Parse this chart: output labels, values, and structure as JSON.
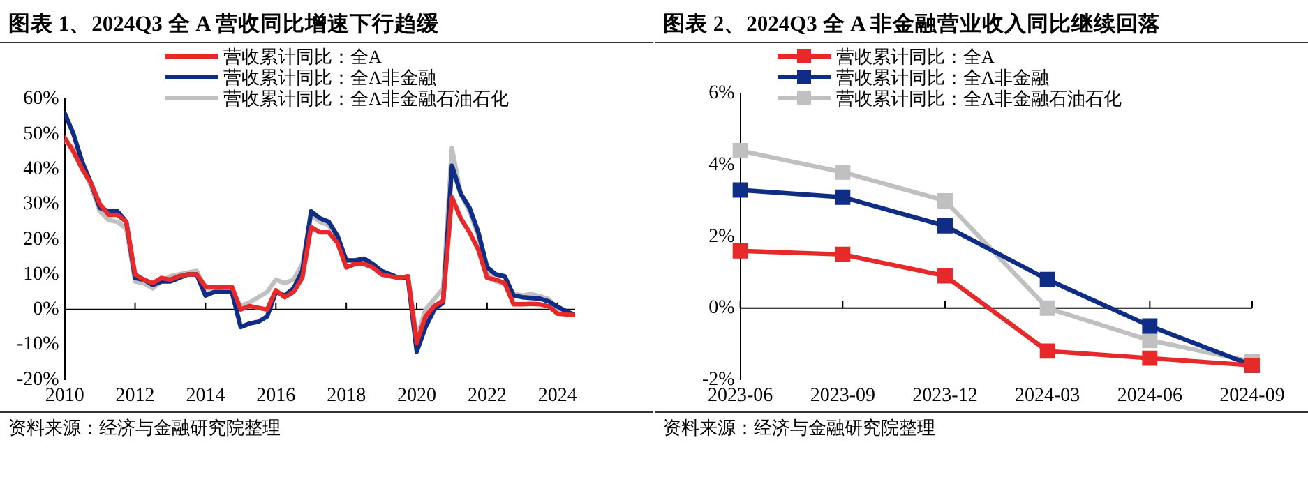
{
  "chart_data": [
    {
      "type": "line",
      "title": "图表 1、2024Q3 全 A 营收同比增速下行趋缓",
      "annotations": [
        "资料来源：经济与金融研究院整理"
      ],
      "legend": "top",
      "grid": false,
      "marker": "none",
      "ref_lines": [
        {
          "axis": "y",
          "value": 0,
          "color": "#000000"
        }
      ],
      "x": [
        2010,
        2010.25,
        2010.5,
        2010.75,
        2011,
        2011.25,
        2011.5,
        2011.75,
        2012,
        2012.25,
        2012.5,
        2012.75,
        2013,
        2013.25,
        2013.5,
        2013.75,
        2014,
        2014.25,
        2014.5,
        2014.75,
        2015,
        2015.25,
        2015.5,
        2015.75,
        2016,
        2016.25,
        2016.5,
        2016.75,
        2017,
        2017.25,
        2017.5,
        2017.75,
        2018,
        2018.25,
        2018.5,
        2018.75,
        2019,
        2019.25,
        2019.5,
        2019.75,
        2020,
        2020.25,
        2020.5,
        2020.75,
        2021,
        2021.25,
        2021.5,
        2021.75,
        2022,
        2022.25,
        2022.5,
        2022.75,
        2023,
        2023.25,
        2023.5,
        2023.75,
        2024,
        2024.25,
        2024.5
      ],
      "xlim": [
        2010,
        2024.5
      ],
      "xticks": [
        2010,
        2012,
        2014,
        2016,
        2018,
        2020,
        2022,
        2024
      ],
      "ylim": [
        -20,
        60
      ],
      "yticks": [
        {
          "value": -20,
          "label": "-20%"
        },
        {
          "value": -10,
          "label": "-10%"
        },
        {
          "value": 0,
          "label": "0%"
        },
        {
          "value": 10,
          "label": "10%"
        },
        {
          "value": 20,
          "label": "20%"
        },
        {
          "value": 30,
          "label": "30%"
        },
        {
          "value": 40,
          "label": "40%"
        },
        {
          "value": 50,
          "label": "50%"
        },
        {
          "value": 60,
          "label": "60%"
        }
      ],
      "series": [
        {
          "name": "营收累计同比：全A",
          "color": "#e8292a",
          "values": [
            49,
            45,
            40,
            36,
            30,
            27,
            27,
            25,
            10,
            8.5,
            7.5,
            9,
            8.5,
            9.5,
            10,
            10,
            6.5,
            6.5,
            6.5,
            6.5,
            0,
            1,
            0.5,
            0,
            5.5,
            3.5,
            5,
            9,
            23.5,
            22,
            22,
            19,
            12,
            13,
            13,
            12,
            10,
            9.5,
            9,
            9.5,
            -9.5,
            -2,
            1,
            2.5,
            32,
            26,
            22,
            17,
            9,
            8.5,
            7.5,
            1.5,
            1.5,
            1.6,
            1.5,
            0.9,
            -1.2,
            -1.4,
            -1.6
          ]
        },
        {
          "name": "营收累计同比：全A非金融",
          "color": "#0f2d84",
          "values": [
            56,
            50,
            42,
            36,
            29,
            28,
            28,
            25,
            9,
            8.5,
            7,
            8,
            8,
            9,
            10,
            10,
            4,
            5,
            5,
            5,
            -5,
            -4,
            -3.5,
            -2,
            5,
            4,
            6,
            11,
            28,
            26,
            25,
            21,
            14,
            14,
            14.5,
            13,
            11,
            10,
            9,
            9,
            -12,
            -5,
            0,
            2,
            41,
            33,
            29,
            22,
            12,
            10,
            9.5,
            4,
            3.5,
            3.3,
            3.1,
            2.3,
            0.8,
            -0.5,
            -1.6
          ]
        },
        {
          "name": "营收累计同比：全A非金融石油石化",
          "color": "#c0c0c0",
          "values": [
            48,
            46,
            41,
            35,
            28,
            25.5,
            25,
            23,
            8,
            7.5,
            6,
            8,
            9.5,
            10,
            10.5,
            11,
            6,
            5.5,
            5,
            5,
            1,
            2,
            3.5,
            5,
            8.5,
            7.5,
            8.5,
            13,
            27,
            25,
            24,
            20,
            14,
            14,
            13.5,
            12,
            10.5,
            9.5,
            9,
            9.5,
            -8,
            0,
            3,
            6,
            46,
            33,
            28,
            21,
            11,
            8,
            7.5,
            4.5,
            4,
            4.4,
            3.8,
            3,
            0,
            -0.9,
            -1.5
          ]
        }
      ]
    },
    {
      "type": "line",
      "title": "图表 2、2024Q3 全 A 非金融营业收入同比继续回落",
      "annotations": [
        "资料来源：经济与金融研究院整理"
      ],
      "legend": "top",
      "grid": false,
      "marker": "square",
      "ref_lines": [
        {
          "axis": "y",
          "value": 0,
          "color": "#000000"
        }
      ],
      "categories": [
        "2023-06",
        "2023-09",
        "2023-12",
        "2024-03",
        "2024-06",
        "2024-09"
      ],
      "ylim": [
        -2,
        6
      ],
      "yticks": [
        {
          "value": -2,
          "label": "-2%"
        },
        {
          "value": 0,
          "label": "0%"
        },
        {
          "value": 2,
          "label": "2%"
        },
        {
          "value": 4,
          "label": "4%"
        },
        {
          "value": 6,
          "label": "6%"
        }
      ],
      "series": [
        {
          "name": "营收累计同比：全A",
          "color": "#e8292a",
          "values": [
            1.6,
            1.5,
            0.9,
            -1.2,
            -1.4,
            -1.6
          ]
        },
        {
          "name": "营收累计同比：全A非金融",
          "color": "#0f2d84",
          "values": [
            3.3,
            3.1,
            2.3,
            0.8,
            -0.5,
            -1.6
          ]
        },
        {
          "name": "营收累计同比：全A非金融石油石化",
          "color": "#c0c0c0",
          "values": [
            4.4,
            3.8,
            3,
            0,
            -0.9,
            -1.5
          ]
        }
      ]
    }
  ]
}
